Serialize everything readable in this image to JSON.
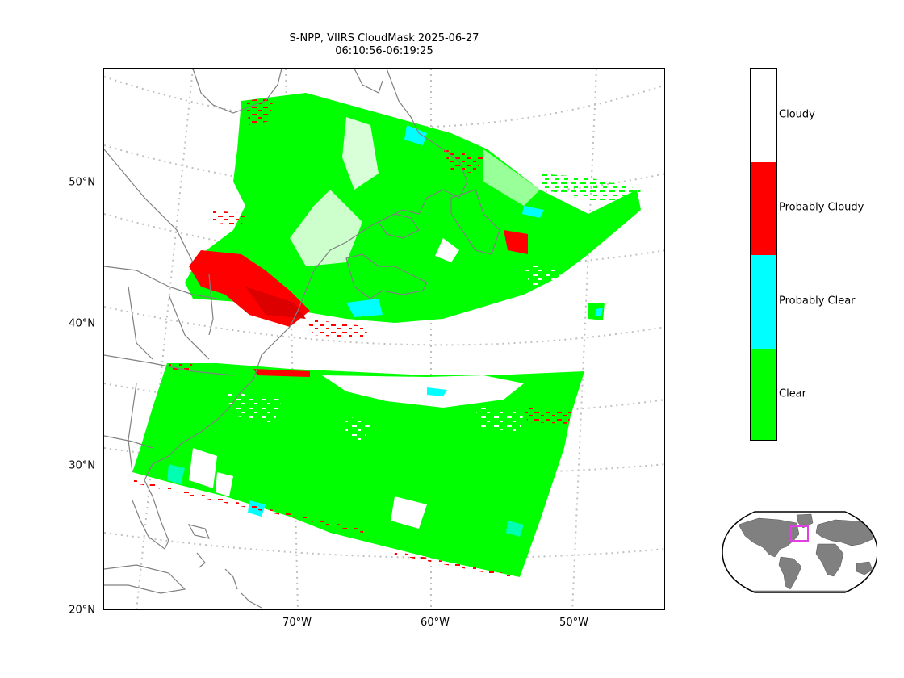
{
  "title": {
    "line1": "S-NPP, VIIRS CloudMask 2025-06-27",
    "line2": "06:10:56-06:19:25"
  },
  "axes": {
    "lat_labels": [
      "50°N",
      "40°N",
      "30°N",
      "20°N"
    ],
    "lon_labels": [
      "70°W",
      "60°W",
      "50°W"
    ]
  },
  "colorbar": {
    "categories": [
      {
        "label": "Cloudy",
        "color": "#ffffff"
      },
      {
        "label": "Probably Cloudy",
        "color": "#ff0000"
      },
      {
        "label": "Probably Clear",
        "color": "#00ffff"
      },
      {
        "label": "Clear",
        "color": "#00ff00"
      }
    ]
  },
  "colors": {
    "coastline": "#808080",
    "graticule": "#bfbfbf",
    "inset_land": "#808080",
    "inset_box": "#e040e0"
  },
  "inset": {
    "type": "globe-locator",
    "region": "Northwest Atlantic / US East Coast"
  }
}
